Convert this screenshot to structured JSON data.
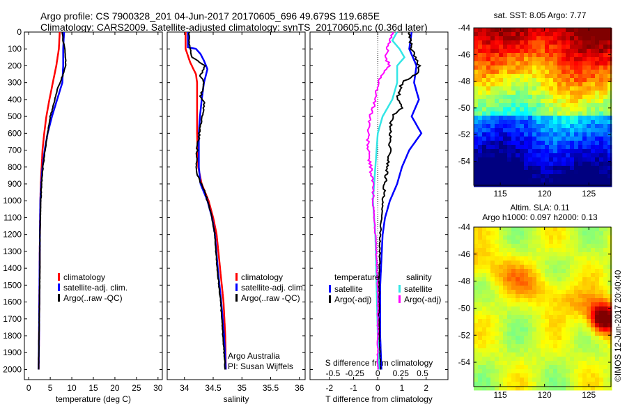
{
  "title": {
    "line1": "Argo profile: CS 7900328_201 04-Jun-2017 20170605_696 49.679S 119.685E",
    "line2": "Climatology: CARS2009. Satellite-adjusted climatology: synTS_20170605.nc (0.36d later)"
  },
  "colors": {
    "climatology": "#ff0000",
    "satellite": "#0000ff",
    "argo": "#000000",
    "sat_salinity": "#33e6e6",
    "argo_salinity_diff": "#ff00ff"
  },
  "chart_data": [
    {
      "type": "line",
      "id": "temperature",
      "xlabel": "temperature (deg C)",
      "xlim": [
        -1,
        31
      ],
      "xticks": [
        0,
        5,
        10,
        15,
        20,
        25,
        30
      ],
      "ylim": [
        2060,
        0
      ],
      "yticks": [
        0,
        100,
        200,
        300,
        400,
        500,
        600,
        700,
        800,
        900,
        1000,
        1100,
        1200,
        1300,
        1400,
        1500,
        1600,
        1700,
        1800,
        1900,
        2000
      ],
      "legend": [
        "climatology",
        "satellite-adj. clim.",
        "Argo(..raw -QC)"
      ],
      "series": [
        {
          "name": "climatology",
          "color": "red",
          "points": [
            [
              7.2,
              0
            ],
            [
              7.0,
              100
            ],
            [
              6.4,
              200
            ],
            [
              5.6,
              300
            ],
            [
              4.8,
              400
            ],
            [
              4.1,
              500
            ],
            [
              3.6,
              600
            ],
            [
              3.2,
              700
            ],
            [
              3.0,
              800
            ],
            [
              2.8,
              900
            ],
            [
              2.7,
              1000
            ],
            [
              2.6,
              1200
            ],
            [
              2.5,
              1500
            ],
            [
              2.4,
              1800
            ],
            [
              2.3,
              2000
            ]
          ]
        },
        {
          "name": "satellite-adj. clim.",
          "color": "blue",
          "points": [
            [
              8.2,
              0
            ],
            [
              8.0,
              100
            ],
            [
              8.0,
              200
            ],
            [
              7.8,
              300
            ],
            [
              6.6,
              400
            ],
            [
              5.4,
              500
            ],
            [
              4.4,
              600
            ],
            [
              3.7,
              700
            ],
            [
              3.2,
              800
            ],
            [
              2.9,
              900
            ],
            [
              2.7,
              1000
            ],
            [
              2.6,
              1200
            ],
            [
              2.5,
              1500
            ],
            [
              2.4,
              1800
            ],
            [
              2.3,
              2000
            ]
          ]
        },
        {
          "name": "Argo(..raw -QC)",
          "color": "black",
          "points": [
            [
              7.8,
              0
            ],
            [
              7.9,
              50
            ],
            [
              8.4,
              100
            ],
            [
              8.6,
              200
            ],
            [
              8.0,
              250
            ],
            [
              6.5,
              350
            ],
            [
              5.6,
              450
            ],
            [
              5.0,
              500
            ],
            [
              4.4,
              600
            ],
            [
              3.8,
              700
            ],
            [
              3.3,
              800
            ],
            [
              3.0,
              900
            ],
            [
              2.8,
              1000
            ],
            [
              2.7,
              1100
            ],
            [
              2.6,
              1200
            ],
            [
              2.6,
              1400
            ],
            [
              2.5,
              1600
            ],
            [
              2.4,
              1800
            ],
            [
              2.3,
              2000
            ]
          ]
        }
      ]
    },
    {
      "type": "line",
      "id": "salinity",
      "xlabel": "salinity",
      "xlim": [
        33.7,
        36.1
      ],
      "xticks": [
        34,
        34.5,
        35,
        35.5,
        36
      ],
      "ylim": [
        2060,
        0
      ],
      "legend": [
        "climatology",
        "satellite-adj. clim.",
        "Argo(..raw -QC)"
      ],
      "annotation": [
        "Argo Australia",
        "PI: Susan Wijffels"
      ],
      "series": [
        {
          "name": "climatology",
          "color": "red",
          "points": [
            [
              34.02,
              0
            ],
            [
              34.02,
              100
            ],
            [
              34.1,
              180
            ],
            [
              34.2,
              250
            ],
            [
              34.22,
              300
            ],
            [
              34.22,
              600
            ],
            [
              34.24,
              800
            ],
            [
              34.3,
              900
            ],
            [
              34.42,
              1000
            ],
            [
              34.5,
              1100
            ],
            [
              34.56,
              1200
            ],
            [
              34.62,
              1400
            ],
            [
              34.68,
              1600
            ],
            [
              34.71,
              1800
            ],
            [
              34.72,
              2000
            ]
          ]
        },
        {
          "name": "satellite-adj. clim.",
          "color": "blue",
          "points": [
            [
              34.06,
              0
            ],
            [
              34.06,
              90
            ],
            [
              34.2,
              100
            ],
            [
              34.28,
              130
            ],
            [
              34.34,
              170
            ],
            [
              34.4,
              220
            ],
            [
              34.34,
              300
            ],
            [
              34.3,
              400
            ],
            [
              34.27,
              500
            ],
            [
              34.25,
              600
            ],
            [
              34.25,
              700
            ],
            [
              34.25,
              800
            ],
            [
              34.28,
              900
            ],
            [
              34.4,
              1000
            ],
            [
              34.48,
              1100
            ],
            [
              34.53,
              1200
            ],
            [
              34.58,
              1400
            ],
            [
              34.64,
              1600
            ],
            [
              34.69,
              1800
            ],
            [
              34.72,
              2000
            ]
          ]
        },
        {
          "name": "Argo(..raw -QC)",
          "color": "black",
          "points": [
            [
              34.08,
              0
            ],
            [
              34.1,
              100
            ],
            [
              34.13,
              150
            ],
            [
              34.35,
              200
            ],
            [
              34.28,
              260
            ],
            [
              34.35,
              300
            ],
            [
              34.28,
              380
            ],
            [
              34.35,
              420
            ],
            [
              34.32,
              480
            ],
            [
              34.26,
              600
            ],
            [
              34.22,
              700
            ],
            [
              34.2,
              800
            ],
            [
              34.22,
              850
            ],
            [
              34.3,
              900
            ],
            [
              34.4,
              1000
            ],
            [
              34.48,
              1100
            ],
            [
              34.53,
              1200
            ],
            [
              34.57,
              1400
            ],
            [
              34.63,
              1600
            ],
            [
              34.67,
              1800
            ],
            [
              34.71,
              2000
            ]
          ]
        }
      ]
    },
    {
      "type": "line",
      "id": "difference",
      "xlabel": "T difference from climatology",
      "xlim": [
        -2.8,
        2.9
      ],
      "xticks": [
        -2,
        -1,
        0,
        1,
        2
      ],
      "x2label": "S difference from climatology",
      "x2ticks": [
        "-0.5",
        "-0.25",
        "0",
        "0.25",
        "0.5"
      ],
      "ylim": [
        2060,
        0
      ],
      "legend_headers": [
        "temperature",
        "salinity"
      ],
      "legend": [
        "satellite",
        "Argo(-adj)",
        "satellite",
        "Argo(-adj)"
      ],
      "series": [
        {
          "name": "satellite",
          "group": "temperature",
          "color": "blue",
          "points": [
            [
              1.4,
              0
            ],
            [
              1.3,
              100
            ],
            [
              1.6,
              200
            ],
            [
              1.5,
              300
            ],
            [
              1.7,
              400
            ],
            [
              1.4,
              500
            ],
            [
              1.8,
              600
            ],
            [
              1.3,
              700
            ],
            [
              1.0,
              800
            ],
            [
              0.8,
              900
            ],
            [
              0.5,
              1000
            ],
            [
              0.3,
              1100
            ],
            [
              0.2,
              1200
            ],
            [
              0.1,
              1500
            ],
            [
              0.1,
              1800
            ],
            [
              0.15,
              2000
            ]
          ]
        },
        {
          "name": "Argo(-adj)",
          "group": "temperature",
          "color": "black",
          "points": [
            [
              1.3,
              0
            ],
            [
              1.4,
              100
            ],
            [
              1.7,
              200
            ],
            [
              1.6,
              250
            ],
            [
              1.0,
              300
            ],
            [
              0.8,
              400
            ],
            [
              1.0,
              450
            ],
            [
              0.6,
              500
            ],
            [
              0.5,
              600
            ],
            [
              0.5,
              700
            ],
            [
              0.4,
              800
            ],
            [
              0.3,
              900
            ],
            [
              0.2,
              1000
            ],
            [
              0.1,
              1200
            ],
            [
              0.05,
              1500
            ],
            [
              0.05,
              1800
            ],
            [
              0.1,
              2000
            ]
          ]
        },
        {
          "name": "satellite",
          "group": "salinity",
          "color": "cyan",
          "points": [
            [
              0.8,
              0
            ],
            [
              0.6,
              50
            ],
            [
              0.9,
              100
            ],
            [
              1.1,
              150
            ],
            [
              0.8,
              200
            ],
            [
              0.8,
              300
            ],
            [
              0.6,
              400
            ],
            [
              0.2,
              500
            ],
            [
              0.0,
              600
            ],
            [
              -0.1,
              800
            ],
            [
              -0.2,
              1000
            ],
            [
              -0.1,
              1200
            ],
            [
              -0.05,
              1500
            ],
            [
              0.0,
              1800
            ],
            [
              0.05,
              2000
            ]
          ]
        },
        {
          "name": "Argo(-adj)",
          "group": "salinity",
          "color": "magenta",
          "points": [
            [
              0.6,
              0
            ],
            [
              0.5,
              50
            ],
            [
              0.4,
              100
            ],
            [
              0.3,
              150
            ],
            [
              0.5,
              200
            ],
            [
              0.2,
              250
            ],
            [
              0.0,
              300
            ],
            [
              -0.1,
              400
            ],
            [
              -0.2,
              450
            ],
            [
              -0.3,
              500
            ],
            [
              -0.4,
              600
            ],
            [
              -0.4,
              700
            ],
            [
              -0.3,
              800
            ],
            [
              -0.2,
              900
            ],
            [
              -0.2,
              1000
            ],
            [
              -0.1,
              1200
            ],
            [
              0.0,
              1500
            ],
            [
              0.0,
              1800
            ],
            [
              0.0,
              2000
            ]
          ]
        }
      ]
    },
    {
      "type": "heatmap",
      "id": "sst_map",
      "title": "sat. SST: 8.05 Argo: 7.77",
      "xticks": [
        115,
        120,
        125
      ],
      "yticks": [
        -44,
        -46,
        -48,
        -50,
        -52,
        -54
      ],
      "xlim": [
        112,
        127.5
      ],
      "ylim": [
        -55.8,
        -44
      ]
    },
    {
      "type": "heatmap",
      "id": "sla_map",
      "title_line1": "Altim. SLA: 0.11",
      "title_line2": "Argo h1000: 0.097 h2000: 0.13",
      "xticks": [
        115,
        120,
        125
      ],
      "yticks": [
        -44,
        -46,
        -48,
        -50,
        -52,
        -54
      ],
      "xlim": [
        112,
        127.5
      ],
      "ylim": [
        -55.8,
        -44
      ]
    }
  ],
  "credit": "©IMOS 12-Jun-2017 20:40:40"
}
